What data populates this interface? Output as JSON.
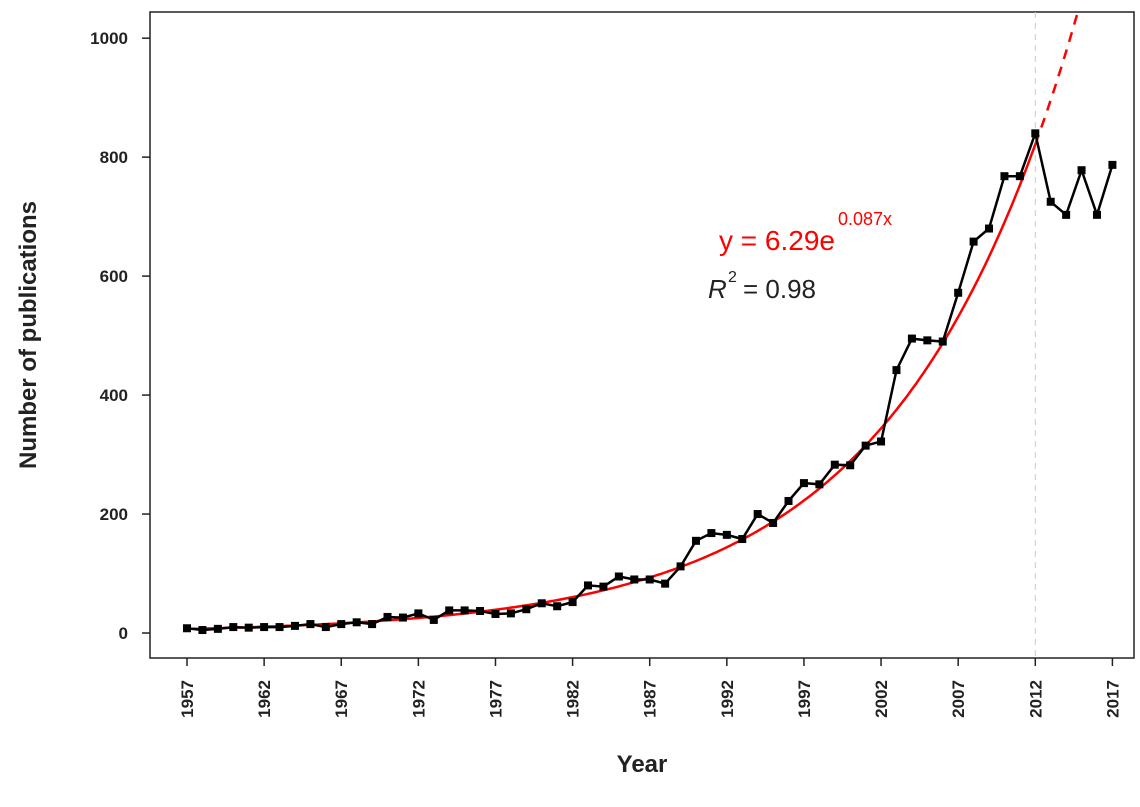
{
  "chart_data": {
    "type": "line",
    "xlabel": "Year",
    "ylabel": "Number of publications",
    "x": [
      1957,
      1958,
      1959,
      1960,
      1961,
      1962,
      1963,
      1964,
      1965,
      1966,
      1967,
      1968,
      1969,
      1970,
      1971,
      1972,
      1973,
      1974,
      1975,
      1976,
      1977,
      1978,
      1979,
      1980,
      1981,
      1982,
      1983,
      1984,
      1985,
      1986,
      1987,
      1988,
      1989,
      1990,
      1991,
      1992,
      1993,
      1994,
      1995,
      1996,
      1997,
      1998,
      1999,
      2000,
      2001,
      2002,
      2003,
      2004,
      2005,
      2006,
      2007,
      2008,
      2009,
      2010,
      2011,
      2012,
      2013,
      2014,
      2015,
      2016,
      2017
    ],
    "values": [
      8,
      5,
      7,
      10,
      9,
      10,
      10,
      12,
      15,
      10,
      15,
      18,
      15,
      27,
      26,
      33,
      22,
      38,
      38,
      37,
      32,
      33,
      40,
      50,
      45,
      52,
      80,
      78,
      95,
      90,
      90,
      83,
      112,
      155,
      168,
      165,
      158,
      200,
      185,
      222,
      252,
      250,
      283,
      282,
      315,
      322,
      442,
      495,
      492,
      490,
      572,
      658,
      680,
      768,
      768,
      840,
      725,
      703,
      778,
      703,
      787
    ],
    "color": "#000000",
    "xlim": [
      1954.6,
      2018.4
    ],
    "ylim": [
      -42,
      1044
    ],
    "xticks": [
      1957,
      1962,
      1967,
      1972,
      1977,
      1982,
      1987,
      1992,
      1997,
      2002,
      2007,
      2012,
      2017
    ],
    "yticks": [
      0,
      200,
      400,
      600,
      800,
      1000
    ],
    "fit": {
      "color": "#ff0000",
      "range": [
        1957,
        2012
      ],
      "equation": "y = 6.29e",
      "exponent": "0.087x",
      "r2_symbol": "R",
      "r2_power": "2",
      "r2_text": "= 0.98"
    }
  }
}
